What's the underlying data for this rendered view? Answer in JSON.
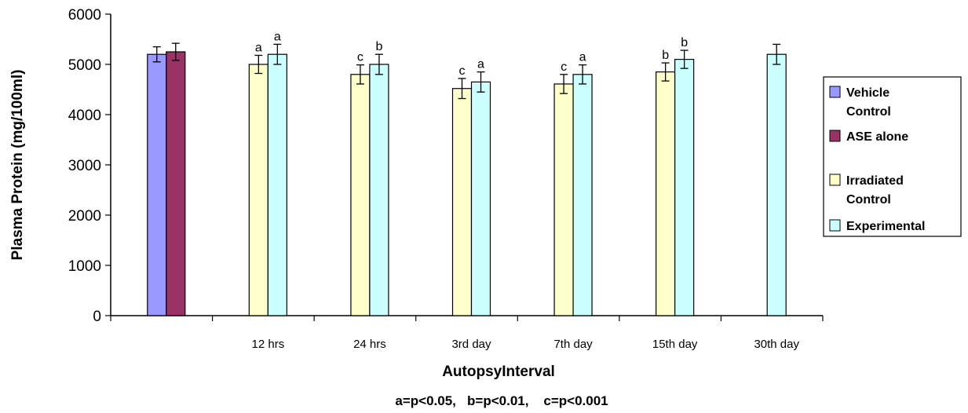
{
  "chart_data": {
    "type": "bar",
    "ylabel": "Plasma Protein (mg/100ml)",
    "xlabel": "AutopsyInterval",
    "footnote": "a=p<0.05,   b=p<0.01,    c=p<0.001",
    "ylim": [
      0,
      6000
    ],
    "yticks": [
      "0",
      "1000",
      "2000",
      "3000",
      "4000",
      "5000",
      "6000"
    ],
    "grid": false,
    "legend_position": "right",
    "categories": [
      "",
      "12 hrs",
      "24 hrs",
      "3rd day",
      "7th day",
      "15th day",
      "30th day"
    ],
    "series": [
      {
        "name": "Vehicle\nControl",
        "color": "#9999ff",
        "values": [
          5200,
          null,
          null,
          null,
          null,
          null,
          null
        ],
        "errors": [
          150,
          null,
          null,
          null,
          null,
          null,
          null
        ],
        "sig": [
          "",
          "",
          "",
          "",
          "",
          "",
          ""
        ]
      },
      {
        "name": "ASE alone",
        "color": "#993366",
        "values": [
          5250,
          null,
          null,
          null,
          null,
          null,
          null
        ],
        "errors": [
          170,
          null,
          null,
          null,
          null,
          null,
          null
        ],
        "sig": [
          "",
          "",
          "",
          "",
          "",
          "",
          ""
        ]
      },
      {
        "name": "Irradiated\nControl",
        "color": "#ffffcc",
        "values": [
          null,
          5000,
          4800,
          4520,
          4610,
          4850,
          null
        ],
        "errors": [
          null,
          180,
          190,
          200,
          190,
          180,
          null
        ],
        "sig": [
          "",
          "a",
          "c",
          "c",
          "c",
          "b",
          ""
        ]
      },
      {
        "name": "Experimental",
        "color": "#ccffff",
        "values": [
          null,
          5200,
          5000,
          4650,
          4800,
          5100,
          5200
        ],
        "errors": [
          null,
          200,
          200,
          200,
          190,
          180,
          200
        ],
        "sig": [
          "",
          "a",
          "b",
          "a",
          "a",
          "b",
          ""
        ]
      }
    ]
  }
}
